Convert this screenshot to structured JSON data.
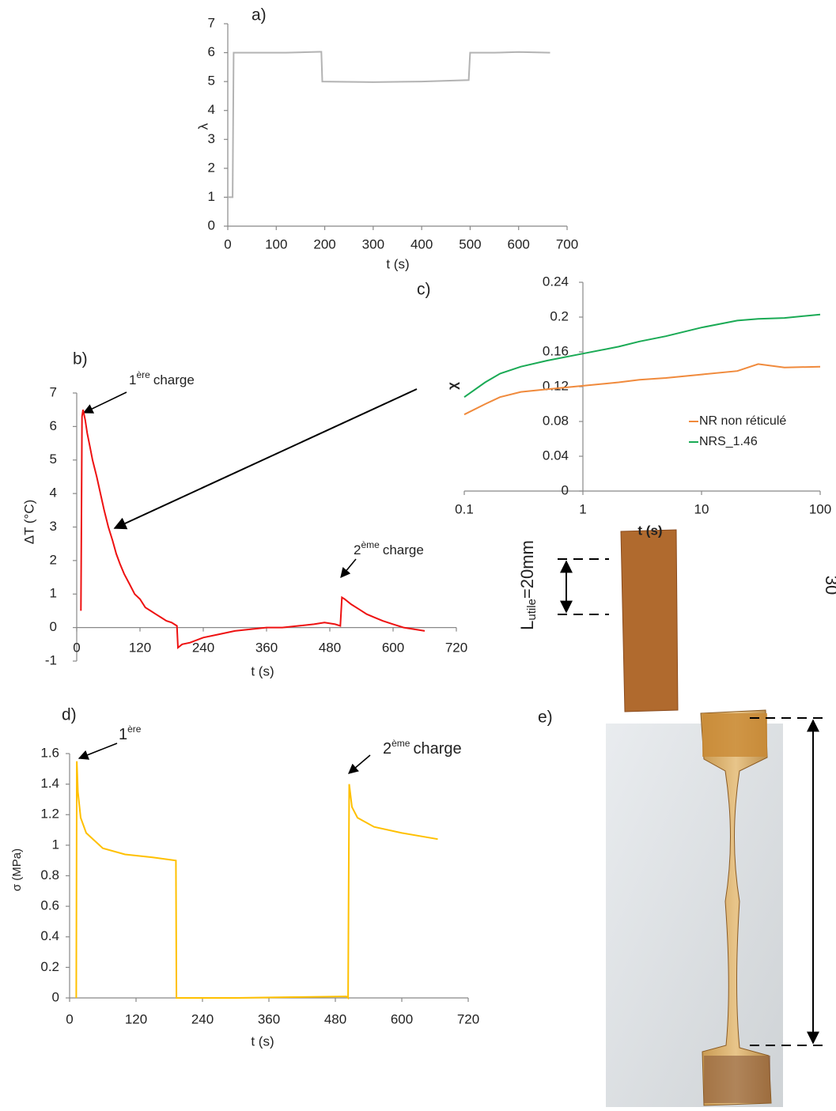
{
  "chart_data": [
    {
      "type": "line",
      "title": "a)",
      "xlabel": "t (s)",
      "ylabel": "λ",
      "color": "#b3b3b3",
      "x": [
        0,
        10,
        12,
        60,
        120,
        190,
        193,
        195,
        300,
        400,
        497,
        500,
        550,
        600,
        665
      ],
      "values": [
        1,
        1,
        6,
        6,
        6,
        6.03,
        6.03,
        5,
        4.98,
        5,
        5.05,
        6,
        6,
        6.02,
        6
      ],
      "xlim": [
        0,
        700
      ],
      "ylim": [
        0,
        7
      ],
      "xticks": [
        0,
        100,
        200,
        300,
        400,
        500,
        600,
        700
      ],
      "yticks": [
        0,
        1,
        2,
        3,
        4,
        5,
        6,
        7
      ]
    },
    {
      "type": "line",
      "title": "b)",
      "xlabel": "t (s)",
      "ylabel": "ΔT (°C)",
      "color": "#ee1111",
      "x": [
        8,
        10,
        12,
        16,
        20,
        25,
        30,
        38,
        45,
        52,
        60,
        68,
        75,
        82,
        90,
        100,
        110,
        120,
        130,
        140,
        150,
        160,
        170,
        180,
        190,
        192,
        200,
        215,
        240,
        270,
        300,
        330,
        360,
        390,
        420,
        450,
        470,
        490,
        500,
        503,
        508,
        520,
        535,
        550,
        565,
        580,
        600,
        620,
        640,
        660
      ],
      "values": [
        0.5,
        6.3,
        6.5,
        6.2,
        5.8,
        5.4,
        5.0,
        4.5,
        4.0,
        3.5,
        3.0,
        2.6,
        2.2,
        1.9,
        1.6,
        1.3,
        1.0,
        0.85,
        0.6,
        0.5,
        0.4,
        0.3,
        0.2,
        0.15,
        0.05,
        -0.6,
        -0.5,
        -0.45,
        -0.3,
        -0.2,
        -0.1,
        -0.05,
        0.0,
        0.0,
        0.05,
        0.1,
        0.15,
        0.1,
        0.05,
        0.9,
        0.85,
        0.7,
        0.55,
        0.4,
        0.3,
        0.2,
        0.1,
        0.0,
        -0.05,
        -0.1
      ],
      "xlim": [
        0,
        720
      ],
      "ylim": [
        -1,
        7
      ],
      "xticks": [
        0,
        120,
        240,
        360,
        480,
        600,
        720
      ],
      "yticks": [
        -1,
        0,
        1,
        2,
        3,
        4,
        5,
        6,
        7
      ],
      "annotations": [
        {
          "label": "1",
          "sup": "ère",
          "suffix": "charge"
        },
        {
          "label": "2",
          "sup": "ème",
          "suffix": "charge"
        }
      ]
    },
    {
      "type": "line",
      "title": "c)",
      "xlabel": "t (s)",
      "ylabel": "χ",
      "xscale": "log",
      "y_axis_crossing": 1,
      "x": [
        0.1,
        0.15,
        0.2,
        0.3,
        0.5,
        1,
        2,
        3,
        5,
        10,
        20,
        30,
        50,
        100
      ],
      "series": [
        {
          "name": "NR non réticulé",
          "color": "#f08a3c",
          "values": [
            0.088,
            0.1,
            0.108,
            0.114,
            0.117,
            0.121,
            0.125,
            0.128,
            0.13,
            0.134,
            0.138,
            0.146,
            0.142,
            0.143
          ]
        },
        {
          "name": "NRS_1.46",
          "color": "#1aaa55",
          "values": [
            0.108,
            0.125,
            0.135,
            0.143,
            0.15,
            0.158,
            0.166,
            0.172,
            0.178,
            0.188,
            0.196,
            0.198,
            0.199,
            0.203
          ]
        }
      ],
      "xlim": [
        0.1,
        100
      ],
      "ylim": [
        0,
        0.24
      ],
      "xticks": [
        0.1,
        1,
        10,
        100
      ],
      "yticks": [
        0,
        0.04,
        0.08,
        0.12,
        0.16,
        0.2,
        0.24
      ]
    },
    {
      "type": "line",
      "title": "d)",
      "xlabel": "t (s)",
      "ylabel": "σ (MPa)",
      "color": "#ffc000",
      "x": [
        12,
        13,
        15,
        20,
        30,
        60,
        100,
        150,
        192,
        193,
        300,
        400,
        500,
        503,
        505,
        510,
        520,
        550,
        600,
        665
      ],
      "values": [
        0,
        1.55,
        1.35,
        1.18,
        1.08,
        0.98,
        0.94,
        0.92,
        0.9,
        0,
        0,
        0.005,
        0.01,
        0,
        1.4,
        1.25,
        1.18,
        1.12,
        1.08,
        1.04
      ],
      "xlim": [
        0,
        720
      ],
      "ylim": [
        0,
        1.6
      ],
      "xticks": [
        0,
        120,
        240,
        360,
        480,
        600,
        720
      ],
      "yticks": [
        0,
        0.2,
        0.4,
        0.6,
        0.8,
        1,
        1.2,
        1.4,
        1.6
      ],
      "annotations": [
        {
          "label": "1",
          "sup": "ère"
        },
        {
          "label": "2",
          "sup": "ème",
          "suffix": "charge"
        }
      ]
    }
  ],
  "panel_e": {
    "title": "e)",
    "length_label": {
      "main": "L",
      "sub": "utile",
      "rest": "=20mm"
    },
    "right_label": "30"
  }
}
